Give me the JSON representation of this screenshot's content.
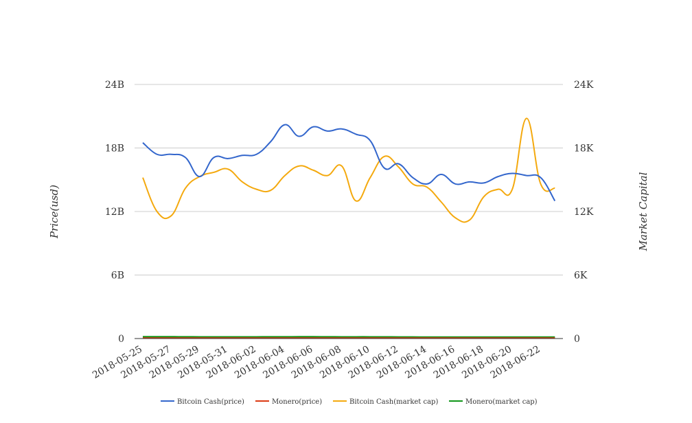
{
  "chart_data": {
    "type": "line",
    "x": [
      "2018-05-25",
      "2018-05-26",
      "2018-05-27",
      "2018-05-28",
      "2018-05-29",
      "2018-05-30",
      "2018-05-31",
      "2018-06-01",
      "2018-06-02",
      "2018-06-03",
      "2018-06-04",
      "2018-06-05",
      "2018-06-06",
      "2018-06-07",
      "2018-06-08",
      "2018-06-09",
      "2018-06-10",
      "2018-06-11",
      "2018-06-12",
      "2018-06-13",
      "2018-06-14",
      "2018-06-15",
      "2018-06-16",
      "2018-06-17",
      "2018-06-18",
      "2018-06-19",
      "2018-06-20",
      "2018-06-21",
      "2018-06-22",
      "2018-06-23"
    ],
    "x_tick_labels": [
      "2018-05-25",
      "2018-05-27",
      "2018-05-29",
      "2018-05-31",
      "2018-06-02",
      "2018-06-04",
      "2018-06-06",
      "2018-06-08",
      "2018-06-10",
      "2018-06-12",
      "2018-06-14",
      "2018-06-16",
      "2018-06-18",
      "2018-06-20",
      "2018-06-22"
    ],
    "ylabel_left": "Price(usd)",
    "ylabel_right": "Market Capital",
    "ylim_left": [
      0,
      24000000000
    ],
    "ylim_right": [
      0,
      24000
    ],
    "y_ticks_left": [
      "0",
      "6B",
      "12B",
      "18B",
      "24B"
    ],
    "y_ticks_right": [
      "0",
      "6K",
      "12K",
      "18K",
      "24K"
    ],
    "grid": true,
    "legend_position": "bottom",
    "series": [
      {
        "name": "Bitcoin Cash(price)",
        "axis": "left",
        "color": "#3366cc",
        "values": [
          18500000000,
          17400000000,
          17400000000,
          17100000000,
          15300000000,
          17100000000,
          17000000000,
          17300000000,
          17400000000,
          18600000000,
          20200000000,
          19100000000,
          20000000000,
          19600000000,
          19800000000,
          19300000000,
          18700000000,
          16100000000,
          16500000000,
          15200000000,
          14600000000,
          15500000000,
          14600000000,
          14800000000,
          14700000000,
          15300000000,
          15600000000,
          15400000000,
          15200000000,
          13000000000
        ]
      },
      {
        "name": "Monero(price)",
        "axis": "left",
        "color": "#dc3912",
        "values": [
          50000000,
          50000000,
          50000000,
          50000000,
          50000000,
          50000000,
          50000000,
          50000000,
          50000000,
          50000000,
          50000000,
          50000000,
          50000000,
          50000000,
          50000000,
          50000000,
          50000000,
          50000000,
          50000000,
          50000000,
          50000000,
          50000000,
          50000000,
          50000000,
          50000000,
          50000000,
          50000000,
          50000000,
          50000000,
          50000000
        ]
      },
      {
        "name": "Bitcoin Cash(market cap)",
        "axis": "right",
        "color": "#f4a90e",
        "values": [
          15200,
          12000,
          11600,
          14200,
          15300,
          15700,
          16000,
          14800,
          14100,
          14000,
          15400,
          16300,
          15900,
          15400,
          16300,
          13000,
          15200,
          17200,
          16200,
          14600,
          14300,
          12900,
          11400,
          11200,
          13400,
          14100,
          14100,
          20800,
          14600,
          14200
        ]
      },
      {
        "name": "Monero(market cap)",
        "axis": "right",
        "color": "#109618",
        "values": [
          160,
          160,
          160,
          155,
          150,
          150,
          150,
          150,
          150,
          155,
          155,
          160,
          160,
          155,
          150,
          150,
          150,
          145,
          140,
          135,
          130,
          130,
          130,
          130,
          130,
          130,
          130,
          130,
          130,
          130
        ]
      }
    ]
  }
}
